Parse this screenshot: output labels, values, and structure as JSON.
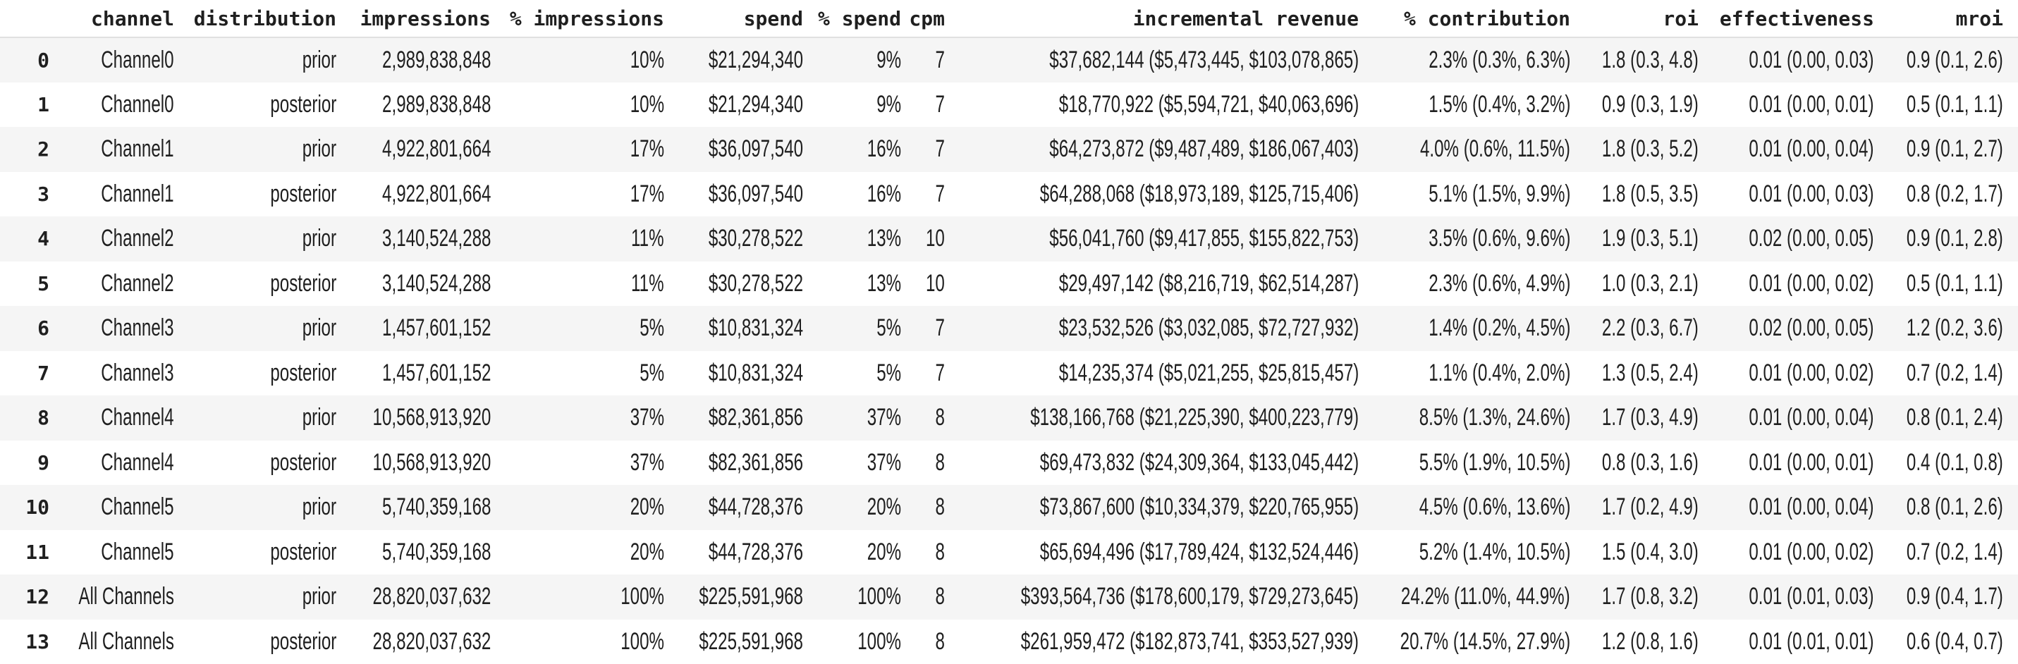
{
  "chart_data": {
    "type": "table",
    "index_header": "",
    "columns": [
      "channel",
      "distribution",
      "impressions",
      "% impressions",
      "spend",
      "% spend",
      "cpm",
      "incremental revenue",
      "% contribution",
      "roi",
      "effectiveness",
      "mroi"
    ],
    "rows": [
      {
        "index": "0",
        "cells": [
          "Channel0",
          "prior",
          "2,989,838,848",
          "10%",
          "$21,294,340",
          "9%",
          "7",
          "$37,682,144 ($5,473,445, $103,078,865)",
          "2.3% (0.3%, 6.3%)",
          "1.8 (0.3, 4.8)",
          "0.01 (0.00, 0.03)",
          "0.9 (0.1, 2.6)"
        ]
      },
      {
        "index": "1",
        "cells": [
          "Channel0",
          "posterior",
          "2,989,838,848",
          "10%",
          "$21,294,340",
          "9%",
          "7",
          "$18,770,922 ($5,594,721, $40,063,696)",
          "1.5% (0.4%, 3.2%)",
          "0.9 (0.3, 1.9)",
          "0.01 (0.00, 0.01)",
          "0.5 (0.1, 1.1)"
        ]
      },
      {
        "index": "2",
        "cells": [
          "Channel1",
          "prior",
          "4,922,801,664",
          "17%",
          "$36,097,540",
          "16%",
          "7",
          "$64,273,872 ($9,487,489, $186,067,403)",
          "4.0% (0.6%, 11.5%)",
          "1.8 (0.3, 5.2)",
          "0.01 (0.00, 0.04)",
          "0.9 (0.1, 2.7)"
        ]
      },
      {
        "index": "3",
        "cells": [
          "Channel1",
          "posterior",
          "4,922,801,664",
          "17%",
          "$36,097,540",
          "16%",
          "7",
          "$64,288,068 ($18,973,189, $125,715,406)",
          "5.1% (1.5%, 9.9%)",
          "1.8 (0.5, 3.5)",
          "0.01 (0.00, 0.03)",
          "0.8 (0.2, 1.7)"
        ]
      },
      {
        "index": "4",
        "cells": [
          "Channel2",
          "prior",
          "3,140,524,288",
          "11%",
          "$30,278,522",
          "13%",
          "10",
          "$56,041,760 ($9,417,855, $155,822,753)",
          "3.5% (0.6%, 9.6%)",
          "1.9 (0.3, 5.1)",
          "0.02 (0.00, 0.05)",
          "0.9 (0.1, 2.8)"
        ]
      },
      {
        "index": "5",
        "cells": [
          "Channel2",
          "posterior",
          "3,140,524,288",
          "11%",
          "$30,278,522",
          "13%",
          "10",
          "$29,497,142 ($8,216,719, $62,514,287)",
          "2.3% (0.6%, 4.9%)",
          "1.0 (0.3, 2.1)",
          "0.01 (0.00, 0.02)",
          "0.5 (0.1, 1.1)"
        ]
      },
      {
        "index": "6",
        "cells": [
          "Channel3",
          "prior",
          "1,457,601,152",
          "5%",
          "$10,831,324",
          "5%",
          "7",
          "$23,532,526 ($3,032,085, $72,727,932)",
          "1.4% (0.2%, 4.5%)",
          "2.2 (0.3, 6.7)",
          "0.02 (0.00, 0.05)",
          "1.2 (0.2, 3.6)"
        ]
      },
      {
        "index": "7",
        "cells": [
          "Channel3",
          "posterior",
          "1,457,601,152",
          "5%",
          "$10,831,324",
          "5%",
          "7",
          "$14,235,374 ($5,021,255, $25,815,457)",
          "1.1% (0.4%, 2.0%)",
          "1.3 (0.5, 2.4)",
          "0.01 (0.00, 0.02)",
          "0.7 (0.2, 1.4)"
        ]
      },
      {
        "index": "8",
        "cells": [
          "Channel4",
          "prior",
          "10,568,913,920",
          "37%",
          "$82,361,856",
          "37%",
          "8",
          "$138,166,768 ($21,225,390, $400,223,779)",
          "8.5% (1.3%, 24.6%)",
          "1.7 (0.3, 4.9)",
          "0.01 (0.00, 0.04)",
          "0.8 (0.1, 2.4)"
        ]
      },
      {
        "index": "9",
        "cells": [
          "Channel4",
          "posterior",
          "10,568,913,920",
          "37%",
          "$82,361,856",
          "37%",
          "8",
          "$69,473,832 ($24,309,364, $133,045,442)",
          "5.5% (1.9%, 10.5%)",
          "0.8 (0.3, 1.6)",
          "0.01 (0.00, 0.01)",
          "0.4 (0.1, 0.8)"
        ]
      },
      {
        "index": "10",
        "cells": [
          "Channel5",
          "prior",
          "5,740,359,168",
          "20%",
          "$44,728,376",
          "20%",
          "8",
          "$73,867,600 ($10,334,379, $220,765,955)",
          "4.5% (0.6%, 13.6%)",
          "1.7 (0.2, 4.9)",
          "0.01 (0.00, 0.04)",
          "0.8 (0.1, 2.6)"
        ]
      },
      {
        "index": "11",
        "cells": [
          "Channel5",
          "posterior",
          "5,740,359,168",
          "20%",
          "$44,728,376",
          "20%",
          "8",
          "$65,694,496 ($17,789,424, $132,524,446)",
          "5.2% (1.4%, 10.5%)",
          "1.5 (0.4, 3.0)",
          "0.01 (0.00, 0.02)",
          "0.7 (0.2, 1.4)"
        ]
      },
      {
        "index": "12",
        "cells": [
          "All Channels",
          "prior",
          "28,820,037,632",
          "100%",
          "$225,591,968",
          "100%",
          "8",
          "$393,564,736 ($178,600,179, $729,273,645)",
          "24.2% (11.0%, 44.9%)",
          "1.7 (0.8, 3.2)",
          "0.01 (0.01, 0.03)",
          "0.9 (0.4, 1.7)"
        ]
      },
      {
        "index": "13",
        "cells": [
          "All Channels",
          "posterior",
          "28,820,037,632",
          "100%",
          "$225,591,968",
          "100%",
          "8",
          "$261,959,472 ($182,873,741, $353,527,939)",
          "20.7% (14.5%, 27.9%)",
          "1.2 (0.8, 1.6)",
          "0.01 (0.01, 0.01)",
          "0.6 (0.4, 0.7)"
        ]
      }
    ]
  },
  "styles": {
    "background": "#ffffff",
    "stripe_color": "#f5f5f5",
    "header_border_color": "#e0e0e0",
    "text_color": "#1f1f1f"
  }
}
